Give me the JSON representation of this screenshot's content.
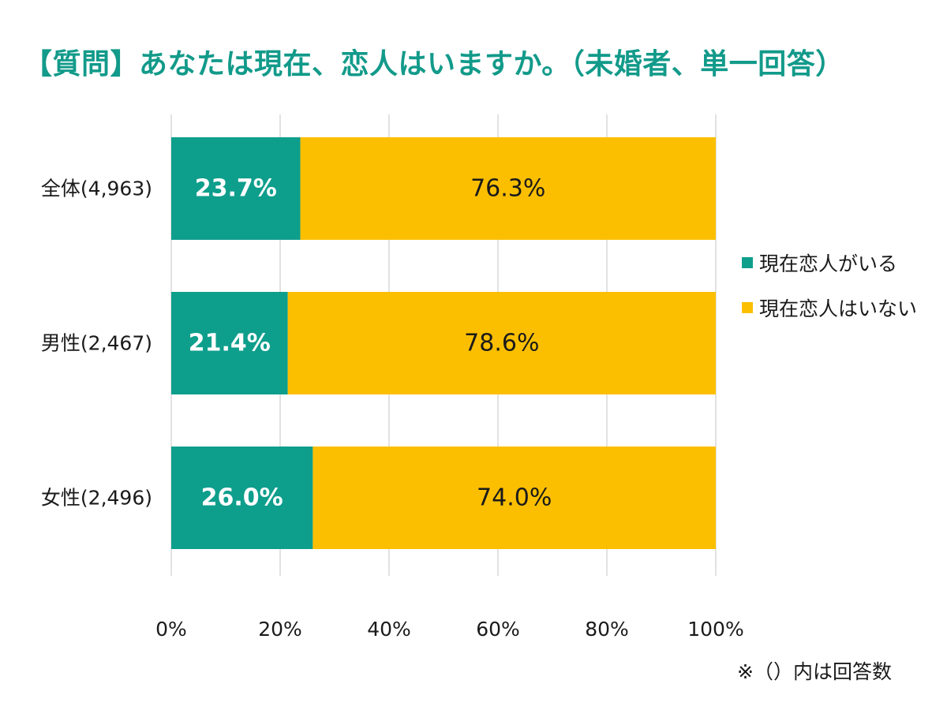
{
  "title": "【質問】あなたは現在、恋人はいますか。（未婚者、単一回答）",
  "note": "※（）内は回答数",
  "colors": {
    "title": "#129a8a",
    "series_have": "#0e9e8c",
    "series_none": "#fcbf00",
    "grid": "#d9d9d9",
    "text": "#1a1a1a"
  },
  "chart_data": {
    "type": "bar",
    "orientation": "horizontal",
    "stacked": true,
    "percent_stacked": true,
    "title": "【質問】あなたは現在、恋人はいますか。（未婚者、単一回答）",
    "categories": [
      "全体(4,963)",
      "男性(2,467)",
      "女性(2,496)"
    ],
    "series": [
      {
        "name": "現在恋人がいる",
        "values": [
          23.7,
          21.4,
          26.0
        ],
        "labels": [
          "23.7%",
          "21.4%",
          "26.0%"
        ],
        "color": "#0e9e8c",
        "label_color": "#ffffff"
      },
      {
        "name": "現在恋人はいない",
        "values": [
          76.3,
          78.6,
          74.0
        ],
        "labels": [
          "76.3%",
          "78.6%",
          "74.0%"
        ],
        "color": "#fcbf00",
        "label_color": "#1a1a1a"
      }
    ],
    "xlim": [
      0,
      100
    ],
    "xticks": [
      0,
      20,
      40,
      60,
      80,
      100
    ],
    "xtick_labels": [
      "0%",
      "20%",
      "40%",
      "60%",
      "80%",
      "100%"
    ],
    "grid": true,
    "legend_position": "right"
  }
}
